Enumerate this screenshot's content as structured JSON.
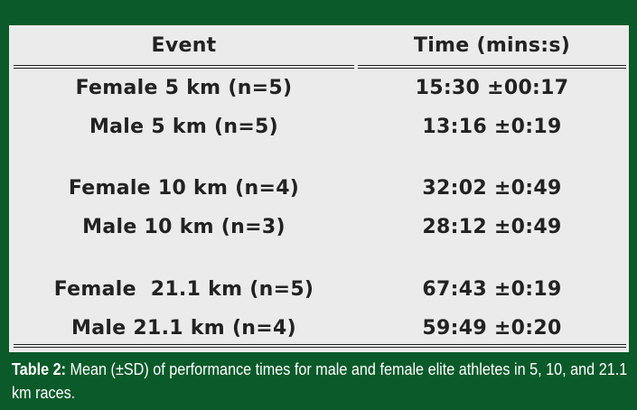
{
  "table": {
    "headers": {
      "event": "Event",
      "time": "Time (mins:s)"
    },
    "rows": [
      {
        "event": "Female 5 km (n=5)",
        "time": "15:30 ±00:17"
      },
      {
        "event": "Male 5 km (n=5)",
        "time": "13:16 ±0:19"
      },
      {
        "event": "Female 10 km (n=4)",
        "time": "32:02 ±0:49"
      },
      {
        "event": "Male 10 km (n=3)",
        "time": "28:12 ±0:49"
      },
      {
        "event": "Female  21.1 km (n=5)",
        "time": "67:43 ±0:19"
      },
      {
        "event": "Male 21.1 km (n=4)",
        "time": "59:49 ±0:20"
      }
    ]
  },
  "caption": {
    "label": "Table 2:",
    "text": " Mean (±SD) of performance times for male and female elite athletes in 5, 10, and 21.1 km races."
  },
  "colors": {
    "frame": "#0b5a2a",
    "panel": "#ebebeb",
    "text": "#222222",
    "caption": "#ffffff"
  }
}
